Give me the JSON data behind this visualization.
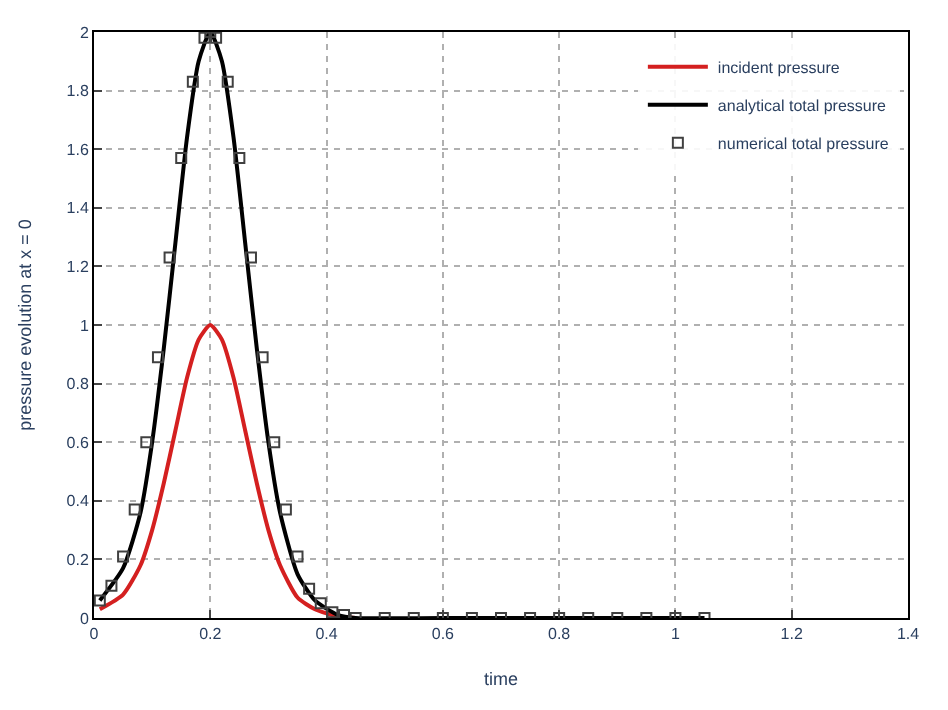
{
  "chart_data": {
    "type": "line",
    "xlabel": "time",
    "ylabel": "pressure evolution at x = 0",
    "xlim": [
      0,
      1.4
    ],
    "xticks": [
      0,
      0.2,
      0.4,
      0.6,
      0.8,
      1,
      1.2,
      1.4
    ],
    "ylim": [
      0,
      2
    ],
    "yticks": [
      0,
      0.2,
      0.4,
      0.6,
      0.8,
      1,
      1.2,
      1.4,
      1.6,
      1.8,
      2
    ],
    "grid": true,
    "legend": "top right",
    "line_style": "solid",
    "series": [
      {
        "name": "incident pressure",
        "color": "#d42020",
        "marker": "none",
        "x": [
          0.01,
          0.05,
          0.08,
          0.1,
          0.12,
          0.14,
          0.16,
          0.18,
          0.2,
          0.22,
          0.24,
          0.26,
          0.28,
          0.3,
          0.32,
          0.35,
          0.38,
          0.42,
          0.45
        ],
        "values": [
          0.03,
          0.08,
          0.18,
          0.3,
          0.46,
          0.64,
          0.82,
          0.95,
          1.0,
          0.95,
          0.82,
          0.64,
          0.46,
          0.3,
          0.18,
          0.07,
          0.03,
          0.005,
          0
        ]
      },
      {
        "name": "analytical total pressure",
        "color": "#000000",
        "marker": "none",
        "x": [
          0.01,
          0.05,
          0.08,
          0.1,
          0.12,
          0.14,
          0.16,
          0.18,
          0.2,
          0.22,
          0.24,
          0.26,
          0.28,
          0.3,
          0.32,
          0.35,
          0.38,
          0.42,
          0.45,
          0.6,
          0.8,
          1.05
        ],
        "values": [
          0.06,
          0.17,
          0.36,
          0.6,
          0.92,
          1.28,
          1.64,
          1.9,
          2.0,
          1.9,
          1.64,
          1.28,
          0.92,
          0.6,
          0.36,
          0.15,
          0.06,
          0.01,
          0,
          0,
          0,
          0
        ]
      },
      {
        "name": "numerical total pressure",
        "color": "#404040",
        "type": "scatter",
        "marker": "square",
        "x": [
          0.01,
          0.03,
          0.05,
          0.07,
          0.09,
          0.11,
          0.13,
          0.15,
          0.17,
          0.19,
          0.2,
          0.21,
          0.23,
          0.25,
          0.27,
          0.29,
          0.31,
          0.33,
          0.35,
          0.37,
          0.39,
          0.41,
          0.43,
          0.45,
          0.5,
          0.55,
          0.6,
          0.65,
          0.7,
          0.75,
          0.8,
          0.85,
          0.9,
          0.95,
          1.0,
          1.05
        ],
        "values": [
          0.06,
          0.11,
          0.21,
          0.37,
          0.6,
          0.89,
          1.23,
          1.57,
          1.83,
          1.98,
          2.0,
          1.98,
          1.83,
          1.57,
          1.23,
          0.89,
          0.6,
          0.37,
          0.21,
          0.1,
          0.05,
          0.02,
          0.01,
          0,
          0,
          0,
          0,
          0,
          0,
          0,
          0,
          0,
          0,
          0,
          0,
          0
        ]
      }
    ]
  }
}
